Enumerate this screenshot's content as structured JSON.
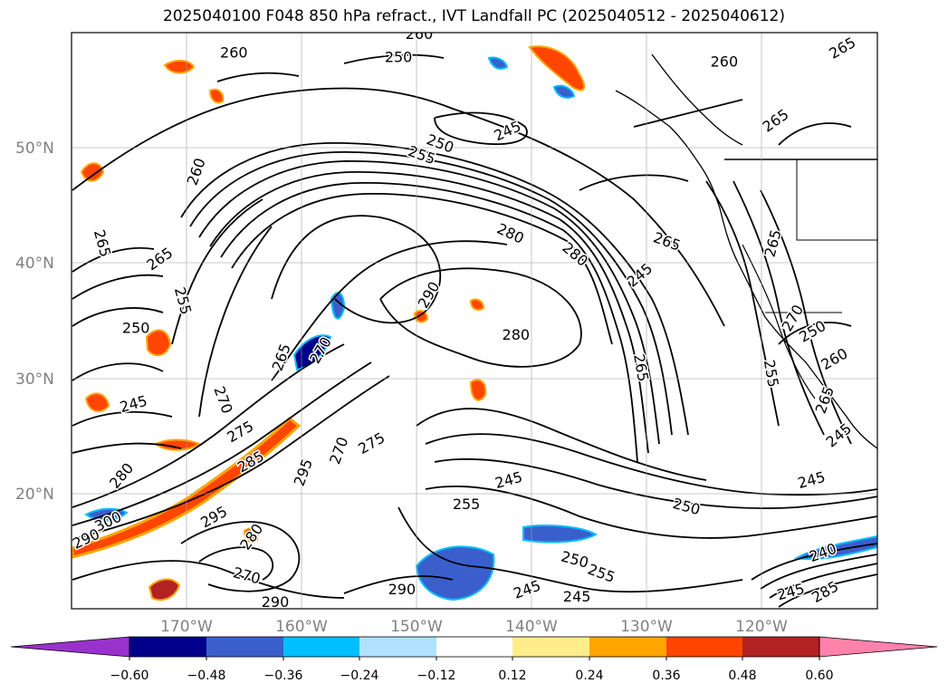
{
  "title": "2025040100 F048 850 hPa refract., IVT Landfall PC (2025040512 - 2025040612)",
  "map": {
    "lon_range": [
      -180,
      -110
    ],
    "lat_range": [
      10,
      60
    ],
    "lat_labels": [
      "20°N",
      "30°N",
      "40°N",
      "50°N"
    ],
    "lon_labels": [
      "170°W",
      "160°W",
      "150°W",
      "140°W",
      "130°W",
      "120°W"
    ],
    "contour_labels": [
      {
        "text": "260",
        "lon": -165.9,
        "lat": 58.2,
        "rot": 0
      },
      {
        "text": "260",
        "lon": -149.8,
        "lat": 59.8,
        "rot": 0
      },
      {
        "text": "250",
        "lon": -151.6,
        "lat": 57.8,
        "rot": 0
      },
      {
        "text": "260",
        "lon": -123.3,
        "lat": 57.4,
        "rot": 0
      },
      {
        "text": "265",
        "lon": -113.0,
        "lat": 58.6,
        "rot": -30
      },
      {
        "text": "245",
        "lon": -142.1,
        "lat": 51.4,
        "rot": -25
      },
      {
        "text": "265",
        "lon": -118.8,
        "lat": 52.3,
        "rot": -35
      },
      {
        "text": "250",
        "lon": -148.0,
        "lat": 50.3,
        "rot": 20
      },
      {
        "text": "255",
        "lon": -149.6,
        "lat": 49.3,
        "rot": 20
      },
      {
        "text": "260",
        "lon": -169.1,
        "lat": 47.9,
        "rot": -70
      },
      {
        "text": "265",
        "lon": -177.4,
        "lat": 41.7,
        "rot": 75
      },
      {
        "text": "265",
        "lon": -172.3,
        "lat": 40.3,
        "rot": -35
      },
      {
        "text": "280",
        "lon": -141.9,
        "lat": 42.5,
        "rot": 25
      },
      {
        "text": "280",
        "lon": -136.3,
        "lat": 40.7,
        "rot": 40
      },
      {
        "text": "265",
        "lon": -128.3,
        "lat": 41.8,
        "rot": 20
      },
      {
        "text": "245",
        "lon": -130.6,
        "lat": 38.9,
        "rot": -40
      },
      {
        "text": "265",
        "lon": -119.0,
        "lat": 41.7,
        "rot": -75
      },
      {
        "text": "290",
        "lon": -148.9,
        "lat": 37.2,
        "rot": -60
      },
      {
        "text": "255",
        "lon": -170.4,
        "lat": 36.7,
        "rot": 75
      },
      {
        "text": "250",
        "lon": -174.4,
        "lat": 34.3,
        "rot": 0
      },
      {
        "text": "280",
        "lon": -141.4,
        "lat": 33.7,
        "rot": 0
      },
      {
        "text": "270",
        "lon": -117.3,
        "lat": 35.2,
        "rot": -60
      },
      {
        "text": "250",
        "lon": -115.6,
        "lat": 34.0,
        "rot": -30
      },
      {
        "text": "265",
        "lon": -161.7,
        "lat": 31.8,
        "rot": -70
      },
      {
        "text": "270",
        "lon": -158.3,
        "lat": 32.4,
        "rot": -60
      },
      {
        "text": "260",
        "lon": -113.7,
        "lat": 31.6,
        "rot": -30
      },
      {
        "text": "265",
        "lon": -130.6,
        "lat": 30.9,
        "rot": 80
      },
      {
        "text": "255",
        "lon": -119.3,
        "lat": 30.4,
        "rot": 80
      },
      {
        "text": "270",
        "lon": -166.9,
        "lat": 28.1,
        "rot": 70
      },
      {
        "text": "265",
        "lon": -114.5,
        "lat": 28.1,
        "rot": -70
      },
      {
        "text": "245",
        "lon": -174.6,
        "lat": 27.7,
        "rot": -15
      },
      {
        "text": "275",
        "lon": -165.3,
        "lat": 25.3,
        "rot": -30
      },
      {
        "text": "275",
        "lon": -153.9,
        "lat": 24.3,
        "rot": -30
      },
      {
        "text": "270",
        "lon": -156.7,
        "lat": 23.7,
        "rot": -70
      },
      {
        "text": "245",
        "lon": -113.3,
        "lat": 25.0,
        "rot": -40
      },
      {
        "text": "285",
        "lon": -164.4,
        "lat": 22.7,
        "rot": -30
      },
      {
        "text": "295",
        "lon": -159.8,
        "lat": 21.8,
        "rot": -70
      },
      {
        "text": "280",
        "lon": -175.6,
        "lat": 21.5,
        "rot": -50
      },
      {
        "text": "245",
        "lon": -142.0,
        "lat": 21.1,
        "rot": -15
      },
      {
        "text": "245",
        "lon": -115.7,
        "lat": 21.1,
        "rot": -15
      },
      {
        "text": "255",
        "lon": -145.7,
        "lat": 19.0,
        "rot": 0
      },
      {
        "text": "250",
        "lon": -126.6,
        "lat": 18.8,
        "rot": 15
      },
      {
        "text": "300",
        "lon": -176.8,
        "lat": 17.5,
        "rot": -25
      },
      {
        "text": "295",
        "lon": -167.6,
        "lat": 17.9,
        "rot": -30
      },
      {
        "text": "290",
        "lon": -178.7,
        "lat": 16.0,
        "rot": -25
      },
      {
        "text": "280",
        "lon": -164.3,
        "lat": 16.2,
        "rot": -55
      },
      {
        "text": "240",
        "lon": -114.7,
        "lat": 14.8,
        "rot": -20
      },
      {
        "text": "250",
        "lon": -136.3,
        "lat": 14.2,
        "rot": 15
      },
      {
        "text": "255",
        "lon": -134.0,
        "lat": 13.0,
        "rot": 20
      },
      {
        "text": "270",
        "lon": -164.8,
        "lat": 12.8,
        "rot": 15
      },
      {
        "text": "245",
        "lon": -140.4,
        "lat": 11.6,
        "rot": -20
      },
      {
        "text": "245",
        "lon": -136.1,
        "lat": 11.0,
        "rot": 0
      },
      {
        "text": "290",
        "lon": -151.3,
        "lat": 11.6,
        "rot": 0
      },
      {
        "text": "290",
        "lon": -162.3,
        "lat": 10.5,
        "rot": 0
      },
      {
        "text": "245",
        "lon": -117.5,
        "lat": 11.4,
        "rot": -15
      },
      {
        "text": "285",
        "lon": -114.5,
        "lat": 11.4,
        "rot": -30
      }
    ]
  },
  "colorbar": {
    "colors": [
      "#9932CC",
      "#00008B",
      "#3A5FCD",
      "#00BFFF",
      "#B0E2FF",
      "#FFFFFF",
      "#FFEC8B",
      "#FFA500",
      "#FF4500",
      "#B22222",
      "#FF82AB"
    ],
    "ticks": [
      "−0.60",
      "−0.48",
      "−0.36",
      "−0.24",
      "−0.12",
      "0.12",
      "0.24",
      "0.36",
      "0.48",
      "0.60"
    ]
  }
}
